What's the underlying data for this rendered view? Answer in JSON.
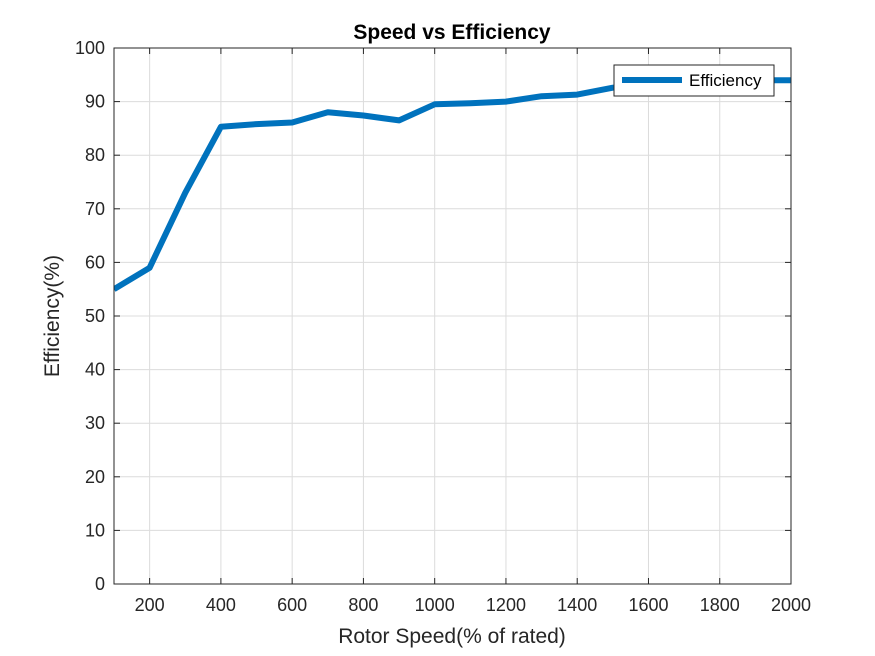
{
  "chart_data": {
    "type": "line",
    "title": "Speed vs Efficiency",
    "xlabel": "Rotor Speed(% of rated)",
    "ylabel": "Efficiency(%)",
    "xlim": [
      100,
      2000
    ],
    "ylim": [
      0,
      100
    ],
    "xticks": [
      200,
      400,
      600,
      800,
      1000,
      1200,
      1400,
      1600,
      1800,
      2000
    ],
    "yticks": [
      0,
      10,
      20,
      30,
      40,
      50,
      60,
      70,
      80,
      90,
      100
    ],
    "grid": true,
    "legend_position": "top-right",
    "series": [
      {
        "name": "Efficiency",
        "color": "#0072BD",
        "x": [
          100,
          200,
          300,
          400,
          500,
          600,
          700,
          800,
          900,
          1000,
          1100,
          1200,
          1300,
          1400,
          1500,
          1600,
          1700,
          1800,
          1900,
          2000
        ],
        "y": [
          55,
          59,
          73,
          85.3,
          85.8,
          86.1,
          88,
          87.4,
          86.5,
          89.5,
          89.7,
          90,
          91,
          91.3,
          92.6,
          93.3,
          93.6,
          93.8,
          94,
          94
        ]
      }
    ]
  }
}
